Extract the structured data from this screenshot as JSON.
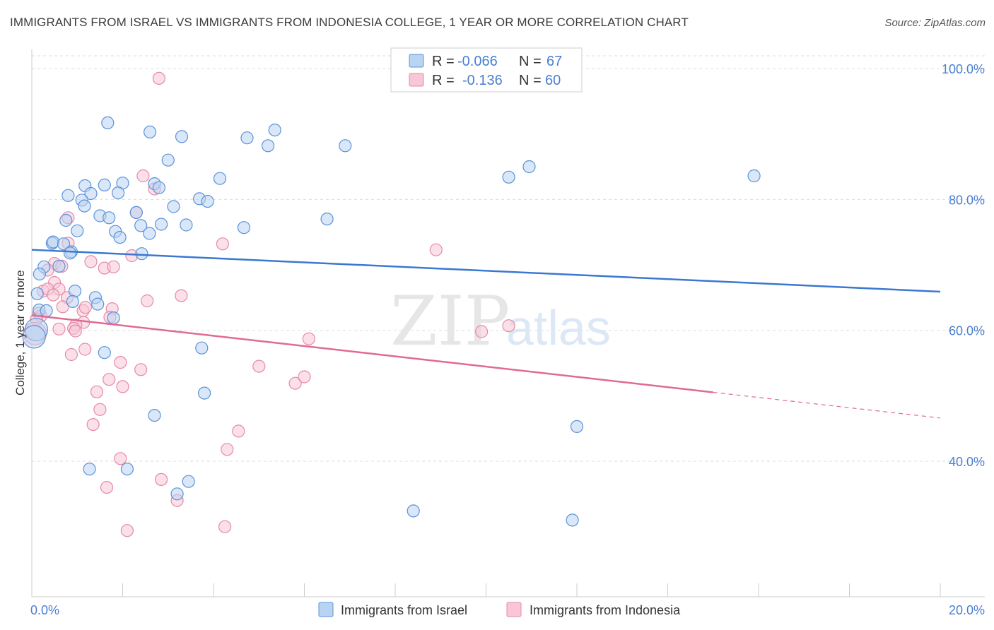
{
  "title": "IMMIGRANTS FROM ISRAEL VS IMMIGRANTS FROM INDONESIA COLLEGE, 1 YEAR OR MORE CORRELATION CHART",
  "source": "Source: ZipAtlas.com",
  "watermark": {
    "zip": "ZIP",
    "atlas": "atlas"
  },
  "colors": {
    "israel_fill": "#b9d3f3",
    "israel_stroke": "#5b93d8",
    "israel_line": "#3b78d0",
    "indonesia_fill": "#f8c6d5",
    "indonesia_stroke": "#e58aa8",
    "indonesia_line": "#e06a95",
    "grid": "#dddddd",
    "axis_label": "#4a7fd0"
  },
  "legend": {
    "rows": [
      {
        "r_label": "R =",
        "r_value": "-0.066",
        "n_label": "N =",
        "n_value": "67"
      },
      {
        "r_label": "R =",
        "r_value": "-0.136",
        "n_label": "N =",
        "n_value": "60"
      }
    ]
  },
  "bottom_legend": {
    "israel": "Immigrants from Israel",
    "indonesia": "Immigrants from Indonesia"
  },
  "chart_data": {
    "type": "scatter",
    "title": "IMMIGRANTS FROM ISRAEL VS IMMIGRANTS FROM INDONESIA COLLEGE, 1 YEAR OR MORE CORRELATION CHART",
    "xlabel": "",
    "ylabel": "College, 1 year or more",
    "xlim": [
      0,
      20
    ],
    "ylim": [
      20,
      102
    ],
    "x_tick_labels": [
      "0.0%",
      "20.0%"
    ],
    "y_tick_labels": [
      "100.0%",
      "80.0%",
      "60.0%",
      "40.0%"
    ],
    "y_ticks": [
      100,
      80,
      60,
      40
    ],
    "grid": true,
    "series": [
      {
        "name": "Immigrants from Israel",
        "r": -0.066,
        "n": 67,
        "trend": {
          "x0": 0,
          "y0": 72.3,
          "x1": 20,
          "y1": 65.9,
          "dash_from": null
        },
        "points": [
          [
            1.67,
            91.7
          ],
          [
            2.6,
            90.3
          ],
          [
            3.3,
            89.6
          ],
          [
            4.74,
            89.4
          ],
          [
            5.35,
            90.6
          ],
          [
            5.2,
            88.2
          ],
          [
            6.9,
            88.2
          ],
          [
            3.0,
            86.0
          ],
          [
            10.5,
            83.4
          ],
          [
            10.95,
            85.0
          ],
          [
            15.9,
            83.6
          ],
          [
            4.14,
            83.2
          ],
          [
            1.17,
            82.1
          ],
          [
            1.6,
            82.2
          ],
          [
            2.0,
            82.5
          ],
          [
            2.7,
            82.4
          ],
          [
            2.8,
            81.8
          ],
          [
            1.3,
            80.9
          ],
          [
            1.9,
            81.0
          ],
          [
            0.8,
            80.6
          ],
          [
            1.1,
            79.9
          ],
          [
            3.69,
            80.1
          ],
          [
            3.87,
            79.7
          ],
          [
            1.16,
            79.0
          ],
          [
            3.12,
            78.9
          ],
          [
            0.75,
            76.8
          ],
          [
            1.5,
            77.5
          ],
          [
            1.7,
            77.2
          ],
          [
            2.3,
            78.0
          ],
          [
            6.5,
            77.0
          ],
          [
            2.4,
            76.0
          ],
          [
            2.85,
            76.2
          ],
          [
            3.4,
            76.1
          ],
          [
            4.67,
            75.7
          ],
          [
            1.0,
            75.2
          ],
          [
            1.84,
            75.1
          ],
          [
            2.59,
            74.8
          ],
          [
            1.94,
            74.2
          ],
          [
            0.45,
            73.3
          ],
          [
            0.47,
            73.5
          ],
          [
            0.7,
            73.2
          ],
          [
            0.87,
            72.0
          ],
          [
            0.84,
            71.8
          ],
          [
            2.42,
            71.7
          ],
          [
            0.27,
            69.7
          ],
          [
            0.6,
            69.8
          ],
          [
            0.17,
            68.6
          ],
          [
            0.12,
            65.6
          ],
          [
            0.95,
            66.0
          ],
          [
            1.4,
            65.0
          ],
          [
            0.9,
            64.4
          ],
          [
            1.45,
            64.0
          ],
          [
            0.16,
            63.1
          ],
          [
            0.32,
            63.0
          ],
          [
            1.8,
            61.9
          ],
          [
            0.1,
            60.1
          ],
          [
            0.05,
            59.0
          ],
          [
            1.6,
            56.6
          ],
          [
            3.74,
            57.3
          ],
          [
            3.8,
            50.4
          ],
          [
            2.7,
            47.0
          ],
          [
            12.0,
            45.3
          ],
          [
            1.27,
            38.8
          ],
          [
            2.1,
            38.8
          ],
          [
            3.45,
            36.9
          ],
          [
            3.2,
            35.0
          ],
          [
            8.4,
            32.4
          ],
          [
            11.9,
            31.0
          ]
        ]
      },
      {
        "name": "Immigrants from Indonesia",
        "r": -0.136,
        "n": 60,
        "trend": {
          "x0": 0,
          "y0": 62.3,
          "x1": 20,
          "y1": 46.6,
          "dash_from": 15.0
        },
        "points": [
          [
            2.8,
            98.5
          ],
          [
            2.45,
            83.6
          ],
          [
            2.7,
            81.6
          ],
          [
            2.3,
            78.0
          ],
          [
            0.8,
            77.2
          ],
          [
            0.8,
            73.3
          ],
          [
            4.2,
            73.2
          ],
          [
            8.9,
            72.3
          ],
          [
            2.2,
            71.4
          ],
          [
            1.3,
            70.5
          ],
          [
            0.5,
            70.2
          ],
          [
            0.66,
            69.8
          ],
          [
            0.35,
            69.2
          ],
          [
            1.6,
            69.5
          ],
          [
            1.8,
            69.7
          ],
          [
            0.5,
            67.3
          ],
          [
            0.6,
            66.3
          ],
          [
            0.25,
            66.0
          ],
          [
            0.35,
            66.3
          ],
          [
            0.78,
            65.0
          ],
          [
            0.47,
            65.4
          ],
          [
            3.29,
            65.3
          ],
          [
            2.54,
            64.5
          ],
          [
            0.68,
            63.6
          ],
          [
            1.13,
            63.0
          ],
          [
            1.18,
            63.5
          ],
          [
            1.77,
            63.3
          ],
          [
            0.15,
            62.6
          ],
          [
            0.2,
            62.2
          ],
          [
            0.1,
            61.7
          ],
          [
            1.72,
            62.0
          ],
          [
            1.14,
            61.2
          ],
          [
            0.97,
            60.8
          ],
          [
            0.92,
            60.3
          ],
          [
            0.6,
            60.2
          ],
          [
            0.96,
            59.9
          ],
          [
            9.9,
            59.8
          ],
          [
            10.5,
            60.7
          ],
          [
            6.1,
            58.7
          ],
          [
            0.07,
            59.5
          ],
          [
            1.17,
            57.1
          ],
          [
            0.87,
            56.3
          ],
          [
            1.95,
            55.1
          ],
          [
            2.4,
            54.0
          ],
          [
            5.0,
            54.5
          ],
          [
            1.7,
            52.5
          ],
          [
            5.8,
            51.9
          ],
          [
            6.0,
            52.9
          ],
          [
            2.0,
            51.4
          ],
          [
            1.43,
            50.6
          ],
          [
            1.5,
            47.9
          ],
          [
            1.35,
            45.6
          ],
          [
            4.55,
            44.6
          ],
          [
            4.3,
            41.8
          ],
          [
            1.95,
            40.4
          ],
          [
            2.85,
            37.2
          ],
          [
            1.65,
            36.0
          ],
          [
            3.2,
            34.0
          ],
          [
            4.25,
            30.0
          ],
          [
            2.1,
            29.4
          ]
        ]
      }
    ]
  }
}
